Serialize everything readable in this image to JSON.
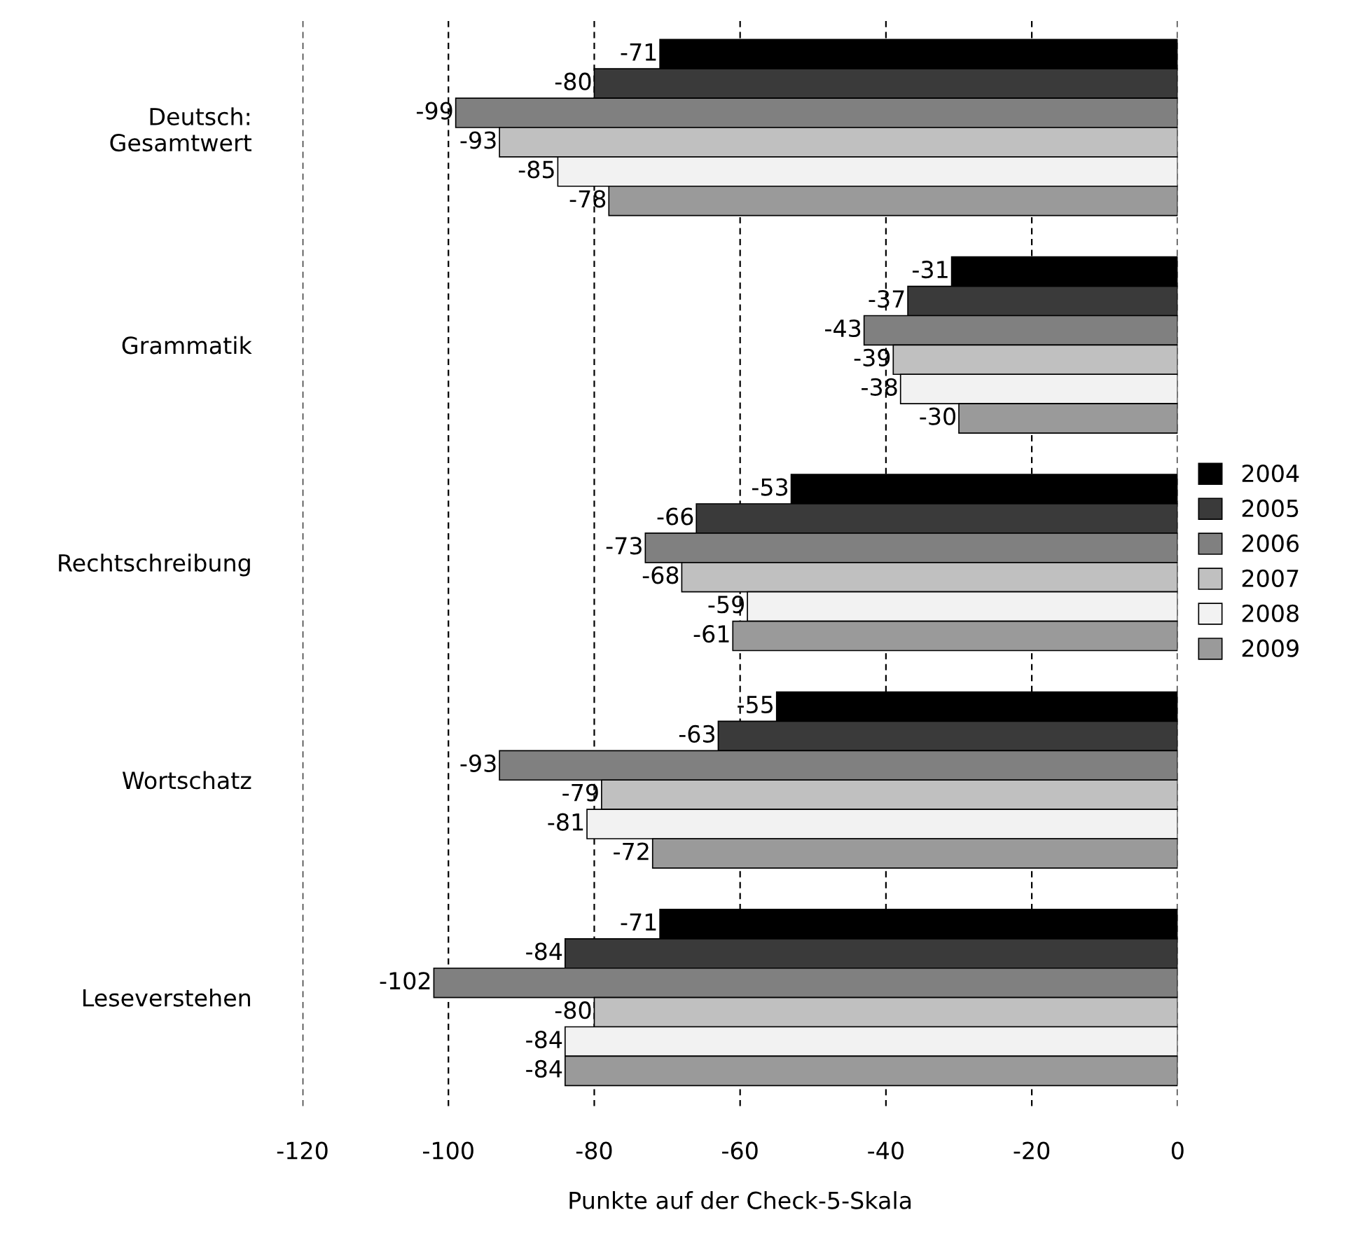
{
  "chart_data": {
    "type": "bar",
    "orientation": "horizontal",
    "xlabel": "Punkte auf der Check-5-Skala",
    "categories": [
      "Deutsch:\nGesamtwert",
      "Grammatik",
      "Rechtschreibung",
      "Wortschatz",
      "Leseverstehen"
    ],
    "series": [
      {
        "name": "2004",
        "color": "#000000",
        "values": [
          -71,
          -31,
          -53,
          -55,
          -71
        ]
      },
      {
        "name": "2005",
        "color": "#3a3a3a",
        "values": [
          -80,
          -37,
          -66,
          -63,
          -84
        ]
      },
      {
        "name": "2006",
        "color": "#808080",
        "values": [
          -99,
          -43,
          -73,
          -93,
          -102
        ]
      },
      {
        "name": "2007",
        "color": "#c0c0c0",
        "values": [
          -93,
          -39,
          -68,
          -79,
          -80
        ]
      },
      {
        "name": "2008",
        "color": "#f2f2f2",
        "values": [
          -85,
          -38,
          -59,
          -81,
          -84
        ]
      },
      {
        "name": "2009",
        "color": "#9a9a9a",
        "values": [
          -78,
          -30,
          -61,
          -72,
          -84
        ]
      }
    ],
    "xlim": [
      -120,
      0
    ],
    "xticks": [
      {
        "value": -120,
        "label": "-120"
      },
      {
        "value": -100,
        "label": "-100"
      },
      {
        "value": -80,
        "label": "-80"
      },
      {
        "value": -60,
        "label": "-60"
      },
      {
        "value": -40,
        "label": "-40"
      },
      {
        "value": -20,
        "label": "-20"
      },
      0
    ],
    "grid": "x",
    "legend": "right",
    "data_labels": true
  }
}
